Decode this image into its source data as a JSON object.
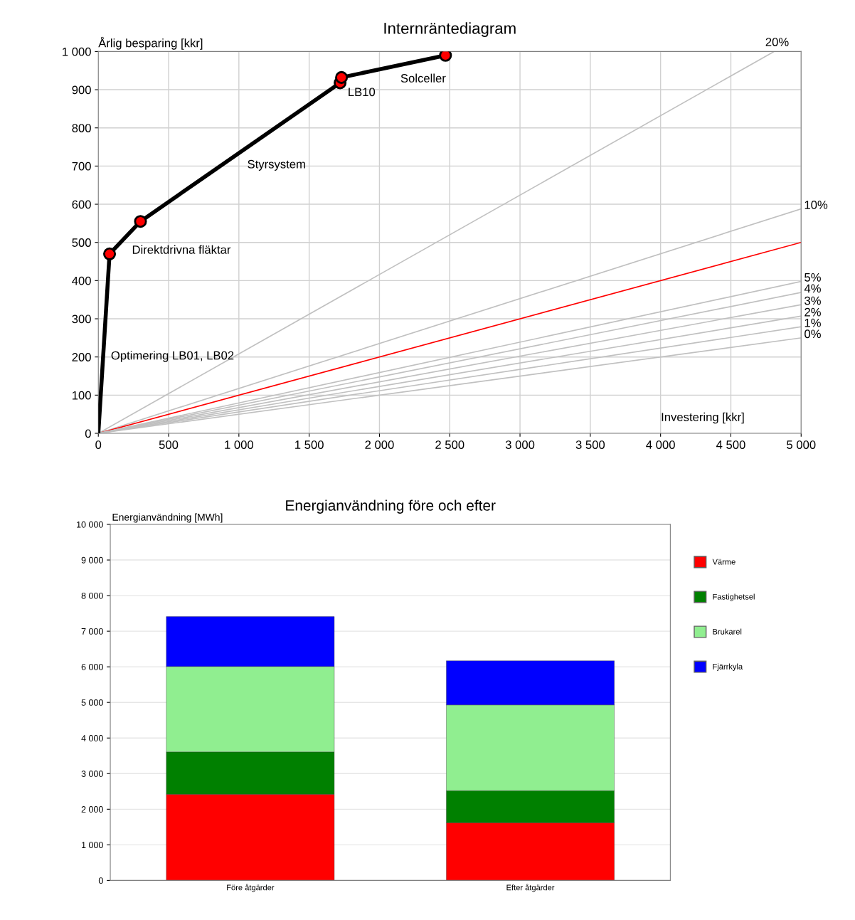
{
  "chart_data": [
    {
      "type": "line",
      "title": "Internräntediagram",
      "xlabel": "Investering [kkr]",
      "ylabel": "Årlig besparing [kkr]",
      "xlim": [
        0,
        5000
      ],
      "ylim": [
        0,
        1000
      ],
      "xticks": [
        0,
        500,
        {
          "value": 1000,
          "label": "1 000"
        },
        {
          "value": 1500,
          "label": "1 500"
        },
        {
          "value": 2000,
          "label": "2 000"
        },
        {
          "value": 2500,
          "label": "2 500"
        },
        {
          "value": 3000,
          "label": "3 000"
        },
        {
          "value": 3500,
          "label": "3 500"
        },
        {
          "value": 4000,
          "label": "4 000"
        },
        {
          "value": 4500,
          "label": "4 500"
        },
        {
          "value": 5000,
          "label": "5 000"
        }
      ],
      "yticks": [
        0,
        100,
        200,
        300,
        400,
        500,
        600,
        700,
        800,
        900,
        {
          "value": 1000,
          "label": "1 000"
        }
      ],
      "grid": true,
      "legend": false,
      "series": [
        {
          "name": "20%",
          "color": "#c0c0c0",
          "x": [
            0,
            4808
          ],
          "values": [
            0,
            1000
          ],
          "marker": "none"
        },
        {
          "name": "10%",
          "color": "#c0c0c0",
          "x": [
            0,
            5000
          ],
          "values": [
            0,
            588
          ],
          "marker": "none"
        },
        {
          "color": "#ff0000",
          "x": [
            0,
            5000
          ],
          "values": [
            0,
            500
          ],
          "marker": "none"
        },
        {
          "name": "5%",
          "color": "#c0c0c0",
          "x": [
            0,
            5000
          ],
          "values": [
            0,
            398
          ],
          "marker": "none"
        },
        {
          "name": "4%",
          "color": "#c0c0c0",
          "x": [
            0,
            5000
          ],
          "values": [
            0,
            369
          ],
          "marker": "none"
        },
        {
          "name": "3%",
          "color": "#c0c0c0",
          "x": [
            0,
            5000
          ],
          "values": [
            0,
            337
          ],
          "marker": "none"
        },
        {
          "name": "2%",
          "color": "#c0c0c0",
          "x": [
            0,
            5000
          ],
          "values": [
            0,
            307
          ],
          "marker": "none"
        },
        {
          "name": "1%",
          "color": "#c0c0c0",
          "x": [
            0,
            5000
          ],
          "values": [
            0,
            279
          ],
          "marker": "none"
        },
        {
          "name": "0%",
          "color": "#c0c0c0",
          "x": [
            0,
            5000
          ],
          "values": [
            0,
            250
          ],
          "marker": "none"
        },
        {
          "color": "#000000",
          "colors": [
            null,
            "#ff0000",
            "#ff0000",
            "#ff0000",
            "#ff0000",
            "#ff0000"
          ],
          "x": [
            0,
            80,
            300,
            1720,
            1730,
            2470
          ],
          "values": [
            0,
            470,
            555,
            918,
            932,
            990
          ],
          "marker": "circle"
        }
      ],
      "annotations": [
        {
          "text": "Optimering LB01, LB02",
          "x": 40,
          "y": 235
        },
        {
          "text": "Direktdrivna fläktar",
          "x": 190,
          "y": 512
        },
        {
          "text": "Styrsystem",
          "x": 1010,
          "y": 736
        },
        {
          "text": "LB10",
          "x": 1725,
          "y": 925
        },
        {
          "text": "Solceller",
          "x": 2100,
          "y": 961
        }
      ]
    },
    {
      "type": "bar",
      "stacked": true,
      "title": "Energianvändning före och efter",
      "ylabel": "Energianvändning [MWh]",
      "categories": [
        "Före åtgärder",
        "Efter åtgärder"
      ],
      "ylim": [
        0,
        10000
      ],
      "yticks": [
        0,
        {
          "value": 1000,
          "label": "1 000"
        },
        {
          "value": 2000,
          "label": "2 000"
        },
        {
          "value": 3000,
          "label": "3 000"
        },
        {
          "value": 4000,
          "label": "4 000"
        },
        {
          "value": 5000,
          "label": "5 000"
        },
        {
          "value": 6000,
          "label": "6 000"
        },
        {
          "value": 7000,
          "label": "7 000"
        },
        {
          "value": 8000,
          "label": "8 000"
        },
        {
          "value": 9000,
          "label": "9 000"
        },
        {
          "value": 10000,
          "label": "10 000"
        }
      ],
      "grid": "y",
      "legend": "right",
      "series": [
        {
          "name": "Värme",
          "color": "#ff0000",
          "values": [
            2420,
            1620
          ]
        },
        {
          "name": "Fastighetsel",
          "color": "#008000",
          "values": [
            1190,
            900
          ]
        },
        {
          "name": "Brukarel",
          "color": "#90ee90",
          "values": [
            2400,
            2410
          ]
        },
        {
          "name": "Fjärrkyla",
          "color": "#0000ff",
          "values": [
            1400,
            1240
          ]
        }
      ]
    }
  ]
}
